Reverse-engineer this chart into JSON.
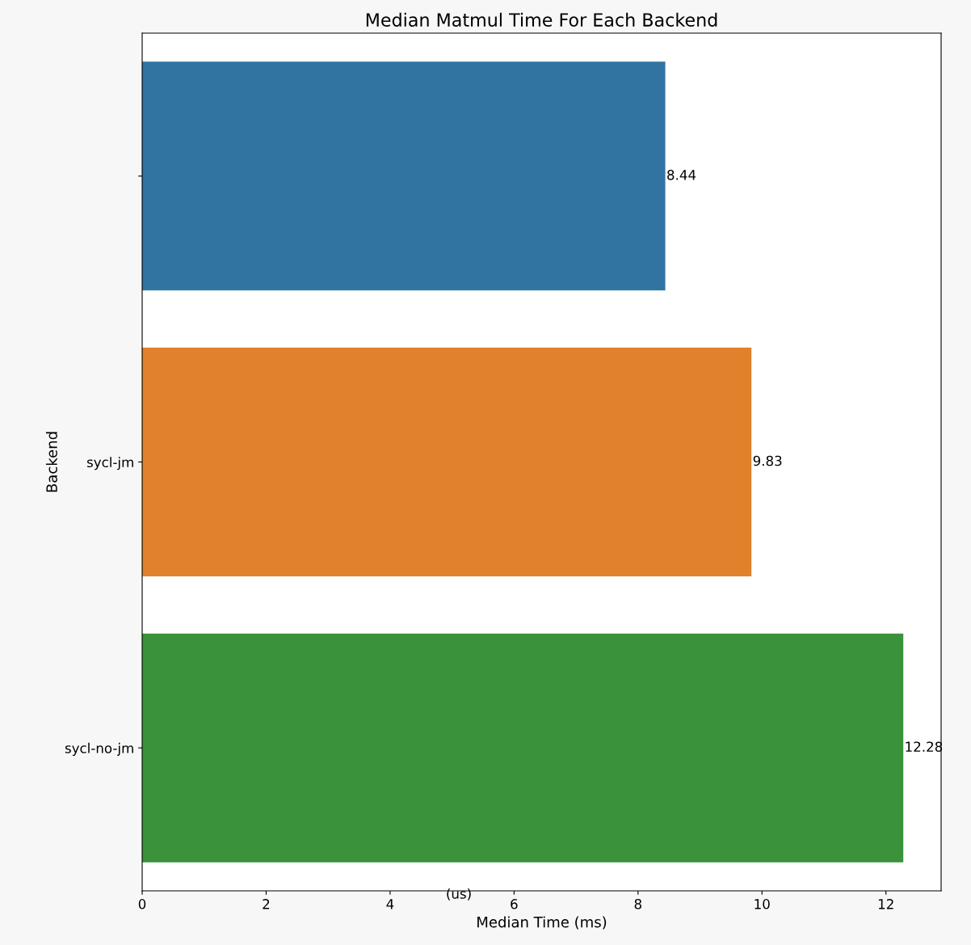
{
  "chart_data": {
    "type": "bar",
    "orientation": "horizontal",
    "title": "Median Matmul Time For Each Backend",
    "xlabel": "Median Time (ms)",
    "ylabel": "Backend",
    "categories": [
      null,
      "sycl-jm",
      "sycl-no-jm"
    ],
    "values": [
      8.44,
      9.83,
      12.28
    ],
    "colors": [
      "#3274a1",
      "#e1812c",
      "#3a923a"
    ],
    "value_labels": [
      "8.44",
      "9.83",
      "12.28"
    ],
    "xlim": [
      0,
      12.89
    ],
    "xticks": [
      0,
      2,
      4,
      6,
      8,
      10,
      12
    ],
    "annotations": [
      "(us)"
    ],
    "grid": false,
    "legend": false
  }
}
